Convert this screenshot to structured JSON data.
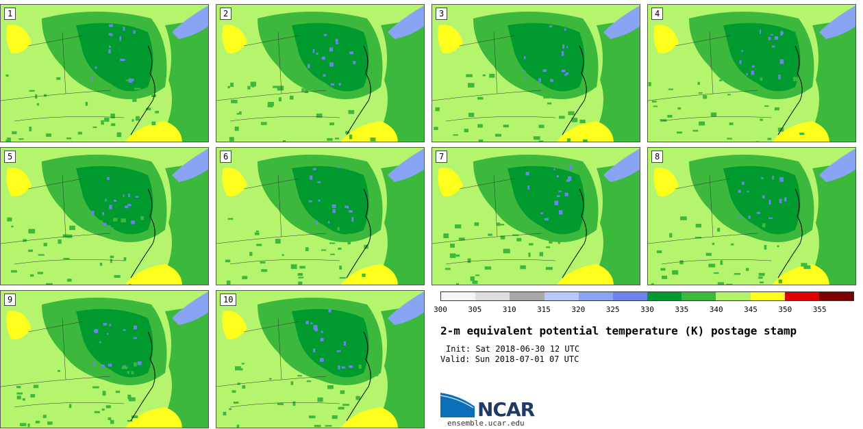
{
  "title": "2-m equivalent potential temperature (K) postage stamp",
  "init_text": "Init: Sat 2018-06-30 12 UTC",
  "valid_text": "Valid: Sun 2018-07-01 07 UTC",
  "logo_text": "NCAR",
  "url_text": "ensemble.ucar.edu",
  "members": [
    "1",
    "2",
    "3",
    "4",
    "5",
    "6",
    "7",
    "8",
    "9",
    "10"
  ],
  "colorbar": {
    "ticks": [
      "300",
      "305",
      "310",
      "315",
      "320",
      "325",
      "330",
      "335",
      "340",
      "345",
      "350",
      "355"
    ],
    "colors": [
      "#f5f5f5",
      "#dedede",
      "#a9a9a9",
      "#b8c8f8",
      "#8aa4f4",
      "#6d84ee",
      "#009a2e",
      "#3cb83c",
      "#b3f36b",
      "#ffff1e",
      "#e00000",
      "#7d0000"
    ]
  },
  "map_colors": {
    "light_green": "#b5f56d",
    "green": "#3cb83c",
    "dark_green": "#009a2e",
    "yellow": "#ffff1e",
    "blue": "#6d84ee",
    "light_blue": "#8aa4f4"
  }
}
